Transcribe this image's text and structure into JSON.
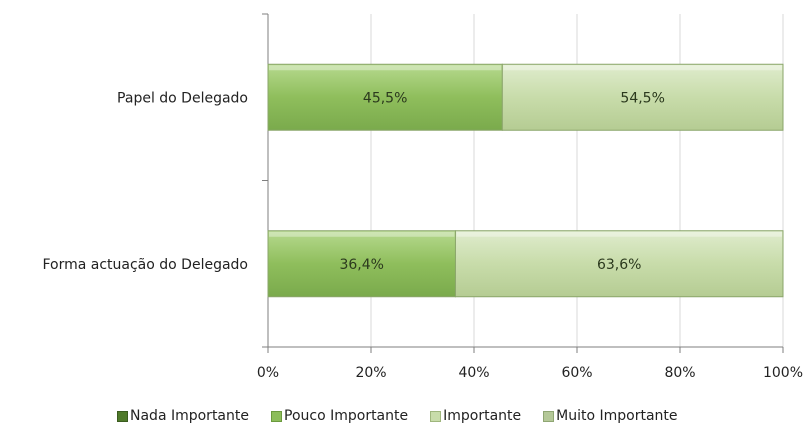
{
  "chart_data": {
    "type": "bar",
    "orientation": "horizontal",
    "stacked": true,
    "categories": [
      "Papel do Delegado",
      "Forma actuação do Delegado"
    ],
    "series": [
      {
        "name": "Nada Importante",
        "values": [
          0,
          0
        ],
        "color": "#4f7a2a"
      },
      {
        "name": "Pouco Importante",
        "values": [
          45.5,
          36.4
        ],
        "color": "#8cbd5a"
      },
      {
        "name": "Importante",
        "values": [
          54.5,
          63.6
        ],
        "color": "#c8dcaa"
      },
      {
        "name": "Muito Importante",
        "values": [
          0,
          0
        ],
        "color": "#b4c898"
      }
    ],
    "data_labels": [
      [
        "45,5%",
        "54,5%"
      ],
      [
        "36,4%",
        "63,6%"
      ]
    ],
    "xlim": [
      0,
      100
    ],
    "x_ticks": [
      "0%",
      "20%",
      "40%",
      "60%",
      "80%",
      "100%"
    ],
    "grid": true,
    "legend_position": "bottom"
  }
}
